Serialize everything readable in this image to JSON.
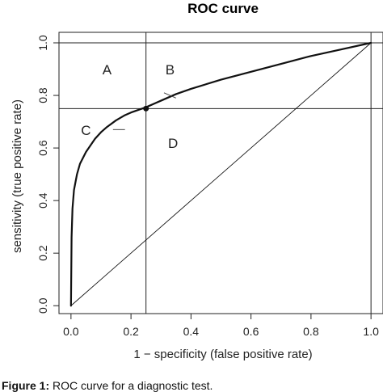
{
  "chart_data": {
    "type": "line",
    "title": "ROC curve",
    "xlabel": "1 − specificity (false positive rate)",
    "ylabel": "sensitivity (true positive rate)",
    "xlim": [
      -0.04,
      1.04
    ],
    "ylim": [
      -0.03,
      1.04
    ],
    "x_ticks": [
      "0.0",
      "0.2",
      "0.4",
      "0.6",
      "0.8",
      "1.0"
    ],
    "y_ticks": [
      "0.0",
      "0.2",
      "0.4",
      "0.6",
      "0.8",
      "1.0"
    ],
    "grid": false,
    "series": [
      {
        "style": "thick-solid",
        "x": [
          0.0,
          0.002,
          0.005,
          0.01,
          0.02,
          0.03,
          0.05,
          0.08,
          0.1,
          0.12,
          0.15,
          0.18,
          0.2,
          0.25,
          0.3,
          0.35,
          0.4,
          0.5,
          0.6,
          0.7,
          0.8,
          0.9,
          1.0
        ],
        "y": [
          0.0,
          0.26,
          0.37,
          0.44,
          0.5,
          0.54,
          0.585,
          0.635,
          0.66,
          0.68,
          0.705,
          0.725,
          0.735,
          0.755,
          0.78,
          0.805,
          0.825,
          0.86,
          0.89,
          0.92,
          0.95,
          0.975,
          1.0
        ]
      },
      {
        "style": "thin-diagonal",
        "x": [
          0.0,
          1.0
        ],
        "y": [
          0.0,
          1.0
        ]
      }
    ],
    "reference_lines": {
      "vertical": [
        0.25,
        1.0
      ],
      "horizontal": [
        0.75,
        1.0
      ]
    },
    "highlight_point": {
      "x": 0.25,
      "y": 0.75
    },
    "tangent_segments": [
      {
        "x": [
          0.31,
          0.35
        ],
        "y": [
          0.81,
          0.79
        ]
      },
      {
        "x": [
          0.14,
          0.18
        ],
        "y": [
          0.67,
          0.67
        ]
      }
    ],
    "region_labels": [
      {
        "text": "A",
        "x": 0.12,
        "y": 0.88
      },
      {
        "text": "B",
        "x": 0.33,
        "y": 0.88
      },
      {
        "text": "C",
        "x": 0.05,
        "y": 0.65
      },
      {
        "text": "D",
        "x": 0.34,
        "y": 0.6
      }
    ]
  },
  "caption": {
    "label": "Figure 1:",
    "text": " ROC curve for a diagnostic test."
  }
}
